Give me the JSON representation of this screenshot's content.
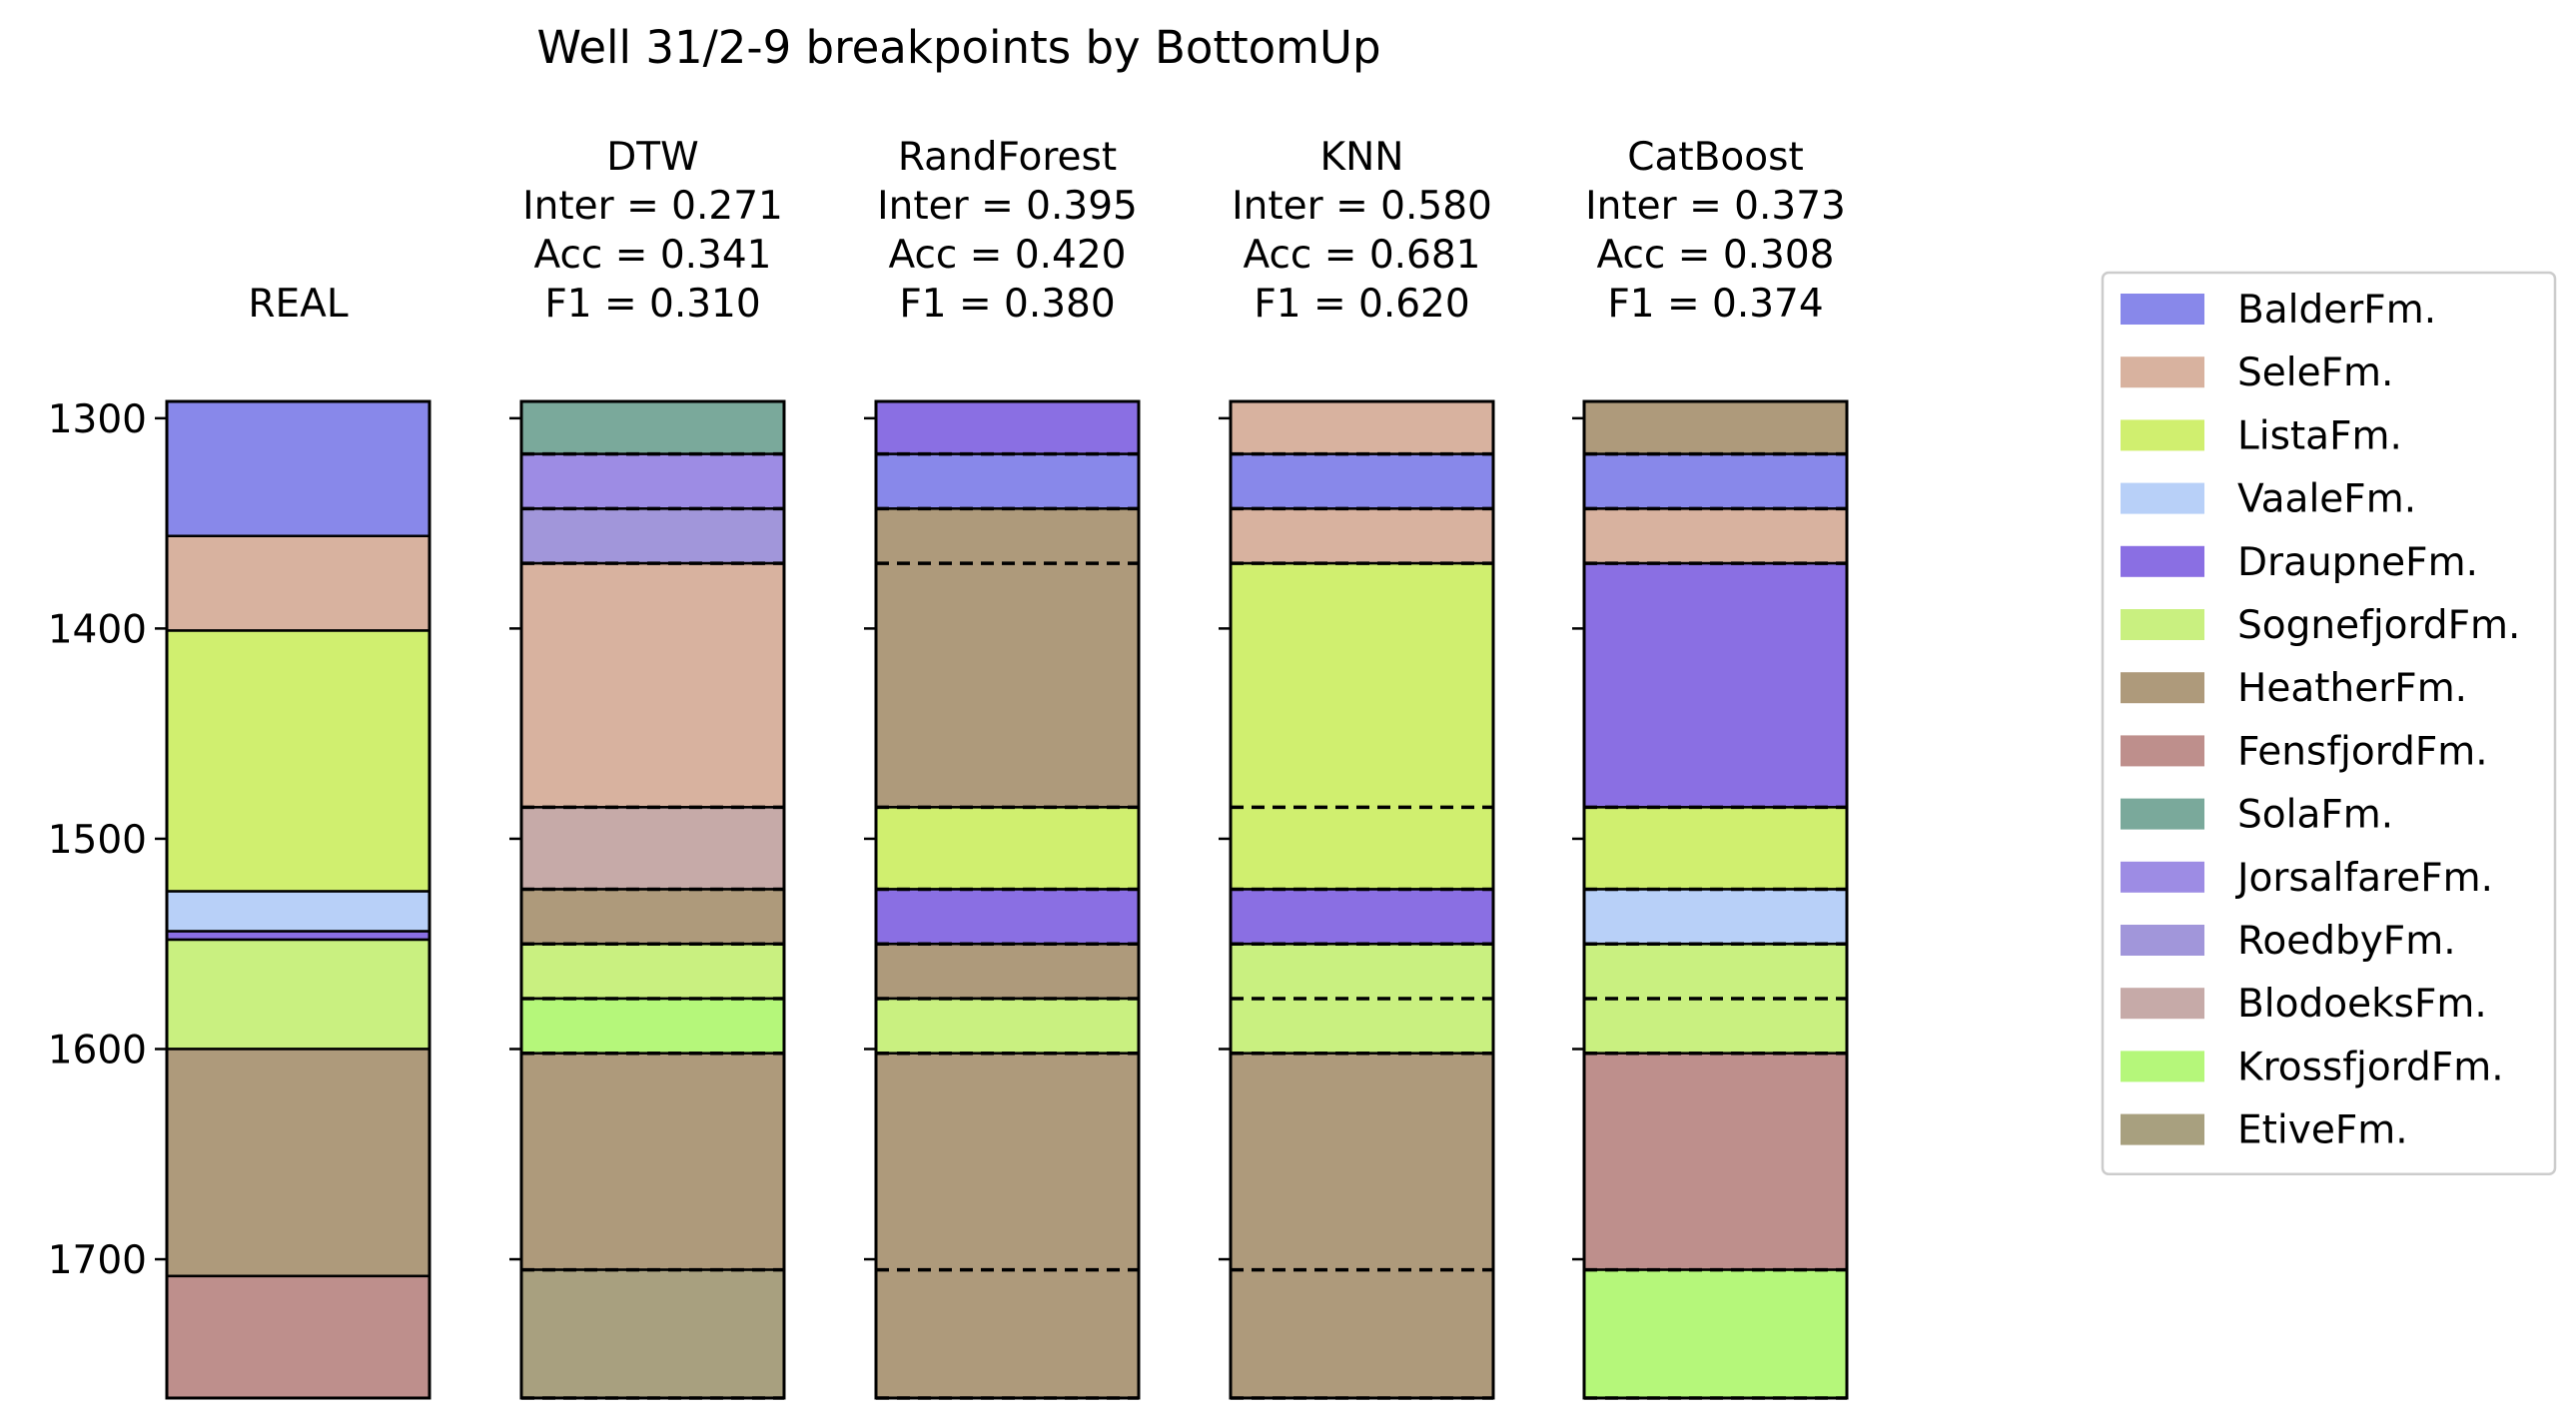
{
  "chart_data": {
    "type": "well-log-strips",
    "title": "Well 31/2-9 breakpoints by BottomUp",
    "depth_range": [
      1292,
      1766
    ],
    "y_ticks": [
      1300,
      1400,
      1500,
      1600,
      1700
    ],
    "grid": false,
    "legend_placement": "right",
    "formations": [
      {
        "name": "BalderFm.",
        "color": "#8888ea"
      },
      {
        "name": "SeleFm.",
        "color": "#d8b29f"
      },
      {
        "name": "ListaFm.",
        "color": "#d0ef6f"
      },
      {
        "name": "VaaleFm.",
        "color": "#b8d0f8"
      },
      {
        "name": "DraupneFm.",
        "color": "#8a6fe3"
      },
      {
        "name": "SognefjordFm.",
        "color": "#c9f080"
      },
      {
        "name": "HeatherFm.",
        "color": "#ae9a7b"
      },
      {
        "name": "FensfjordFm.",
        "color": "#be8f8c"
      },
      {
        "name": "SolaFm.",
        "color": "#7aa99b"
      },
      {
        "name": "JorsalfareFm.",
        "color": "#9d8ce4"
      },
      {
        "name": "RoedbyFm.",
        "color": "#a196da"
      },
      {
        "name": "BlodoeksFm.",
        "color": "#c6aaa8"
      },
      {
        "name": "KrossfjordFm.",
        "color": "#b5f77a"
      },
      {
        "name": "EtiveFm.",
        "color": "#a8a07f"
      }
    ],
    "panels": [
      {
        "header": [
          "REAL"
        ],
        "boundaries": [],
        "intervals": [
          {
            "top": 1292,
            "bottom": 1356,
            "formation": "BalderFm."
          },
          {
            "top": 1356,
            "bottom": 1401,
            "formation": "SeleFm."
          },
          {
            "top": 1401,
            "bottom": 1525,
            "formation": "ListaFm."
          },
          {
            "top": 1525,
            "bottom": 1544,
            "formation": "VaaleFm."
          },
          {
            "top": 1544,
            "bottom": 1548,
            "formation": "DraupneFm."
          },
          {
            "top": 1548,
            "bottom": 1600,
            "formation": "SognefjordFm."
          },
          {
            "top": 1600,
            "bottom": 1708,
            "formation": "HeatherFm."
          },
          {
            "top": 1708,
            "bottom": 1766,
            "formation": "FensfjordFm."
          }
        ]
      },
      {
        "header": [
          "DTW",
          "Inter = 0.271",
          "Acc = 0.341",
          " F1 = 0.310"
        ],
        "boundaries": [
          1317,
          1343,
          1369,
          1485,
          1524,
          1550,
          1576,
          1602,
          1705,
          1766
        ],
        "intervals": [
          {
            "top": 1292,
            "bottom": 1317,
            "formation": "SolaFm."
          },
          {
            "top": 1317,
            "bottom": 1343,
            "formation": "JorsalfareFm."
          },
          {
            "top": 1343,
            "bottom": 1369,
            "formation": "RoedbyFm."
          },
          {
            "top": 1369,
            "bottom": 1485,
            "formation": "SeleFm."
          },
          {
            "top": 1485,
            "bottom": 1524,
            "formation": "BlodoeksFm."
          },
          {
            "top": 1524,
            "bottom": 1550,
            "formation": "HeatherFm."
          },
          {
            "top": 1550,
            "bottom": 1576,
            "formation": "SognefjordFm."
          },
          {
            "top": 1576,
            "bottom": 1602,
            "formation": "KrossfjordFm."
          },
          {
            "top": 1602,
            "bottom": 1705,
            "formation": "HeatherFm."
          },
          {
            "top": 1705,
            "bottom": 1766,
            "formation": "EtiveFm."
          }
        ]
      },
      {
        "header": [
          "RandForest",
          "Inter = 0.395",
          "Acc = 0.420",
          " F1 = 0.380"
        ],
        "boundaries": [
          1317,
          1343,
          1369,
          1485,
          1524,
          1550,
          1576,
          1602,
          1705,
          1766
        ],
        "intervals": [
          {
            "top": 1292,
            "bottom": 1317,
            "formation": "DraupneFm."
          },
          {
            "top": 1317,
            "bottom": 1343,
            "formation": "BalderFm."
          },
          {
            "top": 1343,
            "bottom": 1485,
            "formation": "HeatherFm."
          },
          {
            "top": 1485,
            "bottom": 1524,
            "formation": "ListaFm."
          },
          {
            "top": 1524,
            "bottom": 1550,
            "formation": "DraupneFm."
          },
          {
            "top": 1550,
            "bottom": 1576,
            "formation": "HeatherFm."
          },
          {
            "top": 1576,
            "bottom": 1602,
            "formation": "SognefjordFm."
          },
          {
            "top": 1602,
            "bottom": 1766,
            "formation": "HeatherFm."
          }
        ]
      },
      {
        "header": [
          "KNN",
          "Inter = 0.580",
          "Acc = 0.681",
          " F1 = 0.620"
        ],
        "boundaries": [
          1317,
          1343,
          1369,
          1485,
          1524,
          1550,
          1576,
          1602,
          1705,
          1766
        ],
        "intervals": [
          {
            "top": 1292,
            "bottom": 1317,
            "formation": "SeleFm."
          },
          {
            "top": 1317,
            "bottom": 1343,
            "formation": "BalderFm."
          },
          {
            "top": 1343,
            "bottom": 1369,
            "formation": "SeleFm."
          },
          {
            "top": 1369,
            "bottom": 1524,
            "formation": "ListaFm."
          },
          {
            "top": 1524,
            "bottom": 1550,
            "formation": "DraupneFm."
          },
          {
            "top": 1550,
            "bottom": 1602,
            "formation": "SognefjordFm."
          },
          {
            "top": 1602,
            "bottom": 1766,
            "formation": "HeatherFm."
          }
        ]
      },
      {
        "header": [
          "CatBoost",
          "Inter = 0.373",
          "Acc = 0.308",
          " F1 = 0.374"
        ],
        "boundaries": [
          1317,
          1343,
          1369,
          1485,
          1524,
          1550,
          1576,
          1602,
          1705,
          1766
        ],
        "intervals": [
          {
            "top": 1292,
            "bottom": 1317,
            "formation": "HeatherFm."
          },
          {
            "top": 1317,
            "bottom": 1343,
            "formation": "BalderFm."
          },
          {
            "top": 1343,
            "bottom": 1369,
            "formation": "SeleFm."
          },
          {
            "top": 1369,
            "bottom": 1485,
            "formation": "DraupneFm."
          },
          {
            "top": 1485,
            "bottom": 1524,
            "formation": "ListaFm."
          },
          {
            "top": 1524,
            "bottom": 1550,
            "formation": "VaaleFm."
          },
          {
            "top": 1550,
            "bottom": 1602,
            "formation": "SognefjordFm."
          },
          {
            "top": 1602,
            "bottom": 1705,
            "formation": "FensfjordFm."
          },
          {
            "top": 1705,
            "bottom": 1766,
            "formation": "KrossfjordFm."
          }
        ]
      }
    ]
  }
}
